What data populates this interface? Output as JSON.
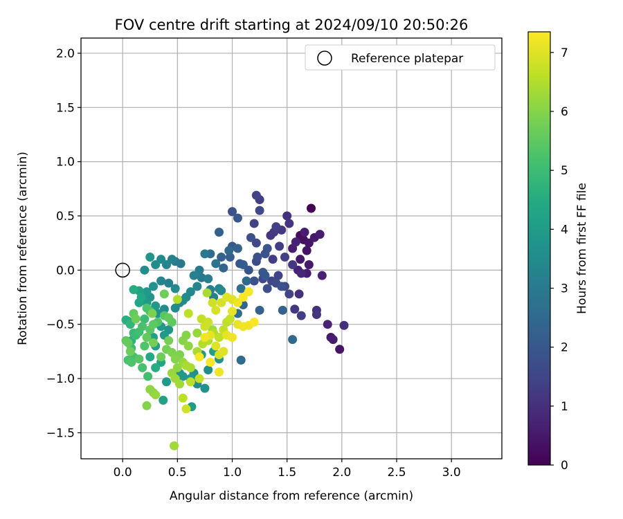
{
  "chart_data": {
    "type": "scatter",
    "title": "FOV centre drift starting at 2024/09/10 20:50:26",
    "xlabel": "Angular distance from reference (arcmin)",
    "ylabel": "Rotation from reference (arcmin)",
    "xlim": [
      -0.38,
      3.46
    ],
    "ylim": [
      -1.74,
      2.14
    ],
    "x_ticks": [
      "0.0",
      "0.5",
      "1.0",
      "1.5",
      "2.0",
      "2.5",
      "3.0"
    ],
    "y_ticks": [
      "−1.5",
      "−1.0",
      "−0.5",
      "0.0",
      "0.5",
      "1.0",
      "1.5",
      "2.0"
    ],
    "grid": true,
    "legend": {
      "position": "top-right",
      "entries": [
        "Reference platepar"
      ]
    },
    "reference_point": {
      "x": 0.0,
      "y": 0.0
    },
    "colorbar": {
      "label": "Hours from first FF file",
      "range": [
        0,
        7.35
      ],
      "ticks": [
        "0",
        "1",
        "2",
        "3",
        "4",
        "5",
        "6",
        "7"
      ],
      "colormap": "viridis"
    },
    "points": [
      [
        1.72,
        0.57,
        0.0
      ],
      [
        1.62,
        0.32,
        0.2
      ],
      [
        1.65,
        0.28,
        0.3
      ],
      [
        1.7,
        0.25,
        0.4
      ],
      [
        1.68,
        0.18,
        0.4
      ],
      [
        1.75,
        0.3,
        0.5
      ],
      [
        1.62,
        0.1,
        0.5
      ],
      [
        1.55,
        0.2,
        0.6
      ],
      [
        1.8,
        0.33,
        0.6
      ],
      [
        1.58,
        0.26,
        0.7
      ],
      [
        1.66,
        0.35,
        0.6
      ],
      [
        1.6,
        0.0,
        0.7
      ],
      [
        1.7,
        0.05,
        0.5
      ],
      [
        1.63,
        -0.03,
        0.8
      ],
      [
        1.68,
        -0.03,
        0.6
      ],
      [
        1.82,
        -0.05,
        0.7
      ],
      [
        1.9,
        -0.62,
        0.5
      ],
      [
        1.92,
        -0.64,
        0.6
      ],
      [
        1.98,
        -0.73,
        0.4
      ],
      [
        1.87,
        -0.5,
        0.7
      ],
      [
        2.02,
        -0.51,
        1.0
      ],
      [
        1.77,
        -0.37,
        1.0
      ],
      [
        1.77,
        -0.41,
        1.1
      ],
      [
        1.61,
        -0.22,
        1.0
      ],
      [
        1.57,
        -0.36,
        1.2
      ],
      [
        1.63,
        -0.42,
        1.3
      ],
      [
        1.5,
        0.5,
        1.0
      ],
      [
        1.52,
        0.43,
        1.1
      ],
      [
        1.45,
        0.37,
        1.2
      ],
      [
        1.4,
        0.4,
        1.4
      ],
      [
        1.35,
        0.32,
        1.1
      ],
      [
        1.38,
        0.35,
        1.2
      ],
      [
        1.43,
        0.22,
        1.3
      ],
      [
        1.37,
        0.1,
        1.3
      ],
      [
        1.48,
        0.12,
        1.4
      ],
      [
        1.55,
        0.05,
        1.2
      ],
      [
        1.42,
        -0.05,
        1.5
      ],
      [
        1.48,
        -0.15,
        1.6
      ],
      [
        1.52,
        -0.22,
        1.5
      ],
      [
        1.4,
        -0.12,
        1.7
      ],
      [
        1.45,
        -0.15,
        1.8
      ],
      [
        1.36,
        -0.1,
        1.6
      ],
      [
        1.28,
        -0.08,
        1.7
      ],
      [
        1.32,
        -0.17,
        1.8
      ],
      [
        1.22,
        0.69,
        1.5
      ],
      [
        1.25,
        0.65,
        1.3
      ],
      [
        1.25,
        0.55,
        1.6
      ],
      [
        1.2,
        0.43,
        1.4
      ],
      [
        1.17,
        0.3,
        1.8
      ],
      [
        1.22,
        0.25,
        1.6
      ],
      [
        1.23,
        0.12,
        1.8
      ],
      [
        1.22,
        0.08,
        1.7
      ],
      [
        1.3,
        0.15,
        1.9
      ],
      [
        1.32,
        0.2,
        1.9
      ],
      [
        1.28,
        -0.02,
        2.0
      ],
      [
        1.3,
        -0.05,
        2.0
      ],
      [
        1.2,
        -0.1,
        1.8
      ],
      [
        1.15,
        0.0,
        1.9
      ],
      [
        1.1,
        0.05,
        2.1
      ],
      [
        1.07,
        0.06,
        2.0
      ],
      [
        1.0,
        0.54,
        1.8
      ],
      [
        1.05,
        0.48,
        2.0
      ],
      [
        1.0,
        0.22,
        2.0
      ],
      [
        1.05,
        0.2,
        2.3
      ],
      [
        0.98,
        0.12,
        2.2
      ],
      [
        0.92,
        0.02,
        2.4
      ],
      [
        0.9,
        0.12,
        2.3
      ],
      [
        0.88,
        0.35,
        2.2
      ],
      [
        0.97,
        0.18,
        2.5
      ],
      [
        1.13,
        -0.1,
        2.5
      ],
      [
        1.08,
        -0.17,
        2.7
      ],
      [
        1.1,
        -0.32,
        2.4
      ],
      [
        1.05,
        -0.4,
        2.6
      ],
      [
        1.25,
        -0.37,
        2.3
      ],
      [
        1.46,
        -0.37,
        2.3
      ],
      [
        1.55,
        -0.64,
        2.5
      ],
      [
        1.08,
        -0.83,
        2.6
      ],
      [
        0.85,
        0.06,
        2.8
      ],
      [
        0.8,
        0.15,
        2.6
      ],
      [
        0.75,
        0.15,
        2.9
      ],
      [
        0.7,
        0.0,
        3.0
      ],
      [
        0.72,
        -0.07,
        3.0
      ],
      [
        0.78,
        -0.08,
        3.1
      ],
      [
        0.8,
        -0.18,
        3.1
      ],
      [
        0.88,
        -0.17,
        3.3
      ],
      [
        0.9,
        -0.19,
        3.4
      ],
      [
        0.83,
        -0.25,
        3.2
      ],
      [
        0.65,
        -0.05,
        3.2
      ],
      [
        0.68,
        -0.15,
        3.3
      ],
      [
        0.62,
        -0.2,
        3.4
      ],
      [
        0.58,
        -0.25,
        3.5
      ],
      [
        0.55,
        -0.28,
        3.4
      ],
      [
        0.52,
        -0.3,
        3.4
      ],
      [
        0.48,
        -0.35,
        3.5
      ],
      [
        0.53,
        0.06,
        2.9
      ],
      [
        0.48,
        0.08,
        3.0
      ],
      [
        0.45,
        0.1,
        3.2
      ],
      [
        0.4,
        0.05,
        3.3
      ],
      [
        0.35,
        0.1,
        3.5
      ],
      [
        0.3,
        0.05,
        3.6
      ],
      [
        0.25,
        0.12,
        3.8
      ],
      [
        0.2,
        0.0,
        3.6
      ],
      [
        0.35,
        -0.1,
        3.3
      ],
      [
        0.42,
        -0.12,
        3.2
      ],
      [
        0.48,
        -0.17,
        3.5
      ],
      [
        0.28,
        -0.15,
        3.7
      ],
      [
        0.22,
        -0.2,
        3.9
      ],
      [
        0.25,
        -0.25,
        3.8
      ],
      [
        0.38,
        -0.36,
        3.6
      ],
      [
        0.32,
        -0.4,
        3.7
      ],
      [
        0.3,
        -0.33,
        3.9
      ],
      [
        0.22,
        -0.3,
        4.0
      ],
      [
        0.15,
        -0.19,
        4.2
      ],
      [
        0.17,
        -0.25,
        4.4
      ],
      [
        0.1,
        -0.18,
        4.5
      ],
      [
        0.15,
        -0.3,
        4.3
      ],
      [
        0.42,
        -0.55,
        3.8
      ],
      [
        0.35,
        -0.52,
        3.9
      ],
      [
        0.38,
        -0.6,
        4.0
      ],
      [
        0.28,
        -0.62,
        4.2
      ],
      [
        0.3,
        -0.7,
        4.2
      ],
      [
        0.25,
        -0.8,
        4.4
      ],
      [
        0.35,
        -0.85,
        4.3
      ],
      [
        0.3,
        -0.9,
        4.5
      ],
      [
        0.4,
        -1.03,
        4.0
      ],
      [
        0.52,
        -0.95,
        3.8
      ],
      [
        0.55,
        -0.98,
        3.9
      ],
      [
        0.65,
        -0.95,
        3.6
      ],
      [
        0.62,
        -1.0,
        3.9
      ],
      [
        0.68,
        -1.05,
        3.5
      ],
      [
        0.75,
        -1.09,
        3.7
      ],
      [
        0.78,
        -0.92,
        3.6
      ],
      [
        0.72,
        -0.78,
        3.9
      ],
      [
        0.88,
        -0.82,
        3.8
      ],
      [
        0.83,
        -0.75,
        4.1
      ],
      [
        0.63,
        -1.26,
        4.0
      ],
      [
        0.37,
        -1.2,
        4.2
      ],
      [
        0.05,
        -0.47,
        4.5
      ],
      [
        0.07,
        -0.5,
        4.8
      ],
      [
        0.03,
        -0.46,
        4.6
      ],
      [
        0.08,
        -0.65,
        4.7
      ],
      [
        0.1,
        -0.58,
        4.9
      ],
      [
        0.12,
        -0.6,
        5.0
      ],
      [
        0.15,
        -0.57,
        5.1
      ],
      [
        0.18,
        -0.52,
        5.2
      ],
      [
        0.2,
        -0.45,
        5.0
      ],
      [
        0.22,
        -0.35,
        5.3
      ],
      [
        0.25,
        -0.38,
        5.2
      ],
      [
        0.08,
        -0.72,
        5.0
      ],
      [
        0.1,
        -0.8,
        5.1
      ],
      [
        0.05,
        -0.83,
        5.2
      ],
      [
        0.08,
        -0.85,
        5.3
      ],
      [
        0.15,
        -0.82,
        5.4
      ],
      [
        0.18,
        -0.9,
        5.2
      ],
      [
        0.23,
        -0.98,
        5.1
      ],
      [
        0.2,
        -0.7,
        5.3
      ],
      [
        0.25,
        -0.55,
        5.4
      ],
      [
        0.28,
        -0.5,
        5.5
      ],
      [
        0.32,
        -0.48,
        5.3
      ],
      [
        0.38,
        -0.42,
        5.4
      ],
      [
        0.42,
        -0.44,
        5.6
      ],
      [
        0.45,
        -0.48,
        5.5
      ],
      [
        0.03,
        -0.65,
        5.5
      ],
      [
        0.05,
        -0.67,
        5.6
      ],
      [
        0.1,
        -0.4,
        5.6
      ],
      [
        0.12,
        -0.45,
        5.7
      ],
      [
        0.07,
        -0.75,
        5.7
      ],
      [
        0.22,
        -0.62,
        5.6
      ],
      [
        0.28,
        -0.67,
        5.8
      ],
      [
        0.35,
        -0.8,
        5.7
      ],
      [
        0.4,
        -0.73,
        5.8
      ],
      [
        0.45,
        -0.76,
        5.9
      ],
      [
        0.48,
        -0.82,
        6.0
      ],
      [
        0.52,
        -0.78,
        5.9
      ],
      [
        0.55,
        -0.65,
        6.0
      ],
      [
        0.58,
        -0.6,
        6.0
      ],
      [
        0.6,
        -0.7,
        6.1
      ],
      [
        0.55,
        -0.85,
        6.2
      ],
      [
        0.5,
        -0.9,
        6.1
      ],
      [
        0.45,
        -0.95,
        6.2
      ],
      [
        0.48,
        -1.0,
        6.3
      ],
      [
        0.52,
        -1.05,
        6.3
      ],
      [
        0.58,
        -0.88,
        6.4
      ],
      [
        0.62,
        -0.9,
        6.4
      ],
      [
        0.68,
        -0.75,
        6.4
      ],
      [
        0.73,
        -0.68,
        6.5
      ],
      [
        0.78,
        -0.65,
        6.5
      ],
      [
        0.83,
        -0.58,
        6.5
      ],
      [
        0.88,
        -0.62,
        6.6
      ],
      [
        0.92,
        -0.55,
        6.7
      ],
      [
        0.95,
        -0.48,
        6.6
      ],
      [
        0.98,
        -0.45,
        6.7
      ],
      [
        0.28,
        -1.13,
        6.0
      ],
      [
        0.25,
        -1.1,
        6.1
      ],
      [
        0.3,
        -1.15,
        6.2
      ],
      [
        0.22,
        -1.25,
        6.0
      ],
      [
        0.47,
        -1.62,
        6.3
      ],
      [
        0.55,
        -1.18,
        6.6
      ],
      [
        0.58,
        -1.28,
        6.8
      ],
      [
        0.62,
        -1.03,
        6.6
      ],
      [
        0.7,
        -1.0,
        6.7
      ],
      [
        0.72,
        -0.45,
        6.7
      ],
      [
        0.75,
        -0.52,
        6.8
      ],
      [
        0.78,
        -0.48,
        6.8
      ],
      [
        0.82,
        -0.3,
        6.8
      ],
      [
        0.85,
        -0.37,
        6.9
      ],
      [
        0.9,
        -0.3,
        6.9
      ],
      [
        0.95,
        -0.25,
        7.0
      ],
      [
        1.0,
        -0.27,
        7.0
      ],
      [
        0.88,
        -0.78,
        6.9
      ],
      [
        0.92,
        -0.75,
        7.0
      ],
      [
        0.85,
        -0.7,
        7.0
      ],
      [
        0.8,
        -0.6,
        7.1
      ],
      [
        0.75,
        -0.62,
        7.2
      ],
      [
        0.95,
        -0.6,
        7.1
      ],
      [
        1.0,
        -0.62,
        7.2
      ],
      [
        1.05,
        -0.5,
        7.1
      ],
      [
        1.1,
        -0.52,
        7.2
      ],
      [
        1.15,
        -0.51,
        7.2
      ],
      [
        1.2,
        -0.48,
        7.3
      ],
      [
        1.0,
        -0.38,
        7.1
      ],
      [
        1.05,
        -0.3,
        7.2
      ],
      [
        1.1,
        -0.25,
        7.3
      ],
      [
        1.15,
        -0.2,
        7.3
      ],
      [
        0.88,
        -0.94,
        7.2
      ],
      [
        0.8,
        -0.85,
        7.3
      ],
      [
        0.7,
        -0.8,
        7.3
      ],
      [
        0.5,
        -0.27,
        6.5
      ],
      [
        0.6,
        -0.4,
        6.6
      ],
      [
        0.77,
        -0.21,
        6.4
      ],
      [
        0.82,
        -0.55,
        6.3
      ],
      [
        0.68,
        -0.58,
        6.2
      ],
      [
        0.38,
        -0.22,
        5.7
      ],
      [
        0.27,
        -0.4,
        5.9
      ],
      [
        0.42,
        -0.65,
        5.8
      ]
    ]
  }
}
